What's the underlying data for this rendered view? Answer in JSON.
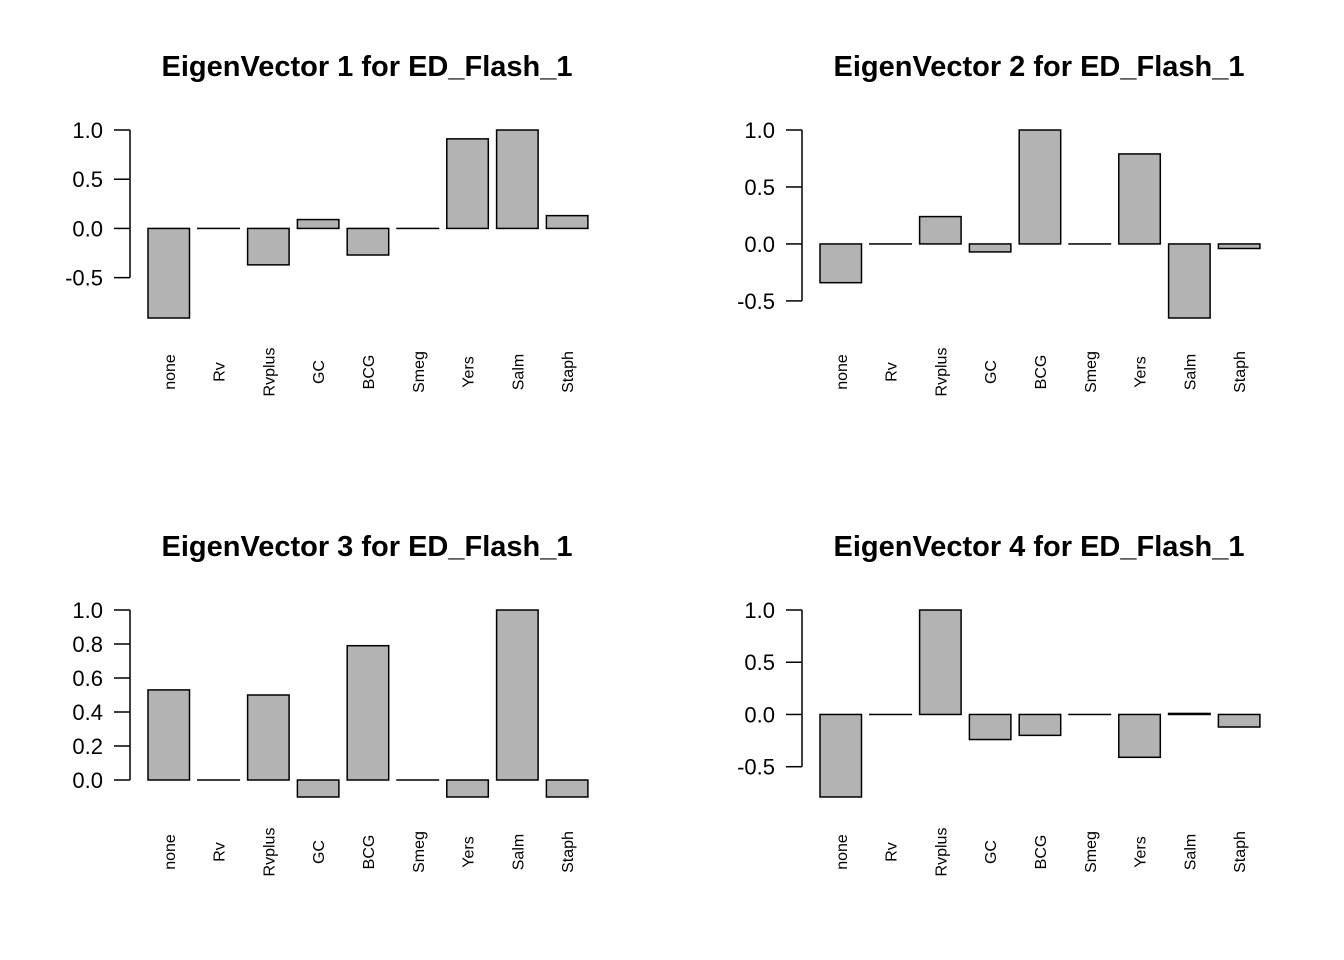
{
  "bar_color": "#b3b3b3",
  "chart_data": [
    {
      "type": "bar",
      "title": "EigenVector 1 for ED_Flash_1",
      "categories": [
        "none",
        "Rv",
        "Rvplus",
        "GC",
        "BCG",
        "Smeg",
        "Yers",
        "Salm",
        "Staph"
      ],
      "values": [
        -0.91,
        0.0,
        -0.37,
        0.09,
        -0.27,
        0.0,
        0.91,
        1.0,
        0.13
      ],
      "yticks": [
        -0.5,
        0.0,
        0.5,
        1.0
      ],
      "ytick_labels": [
        "-0.5",
        "0.0",
        "0.5",
        "1.0"
      ],
      "ylim": [
        -0.91,
        1.0
      ],
      "xlabel": "",
      "ylabel": ""
    },
    {
      "type": "bar",
      "title": "EigenVector 2 for ED_Flash_1",
      "categories": [
        "none",
        "Rv",
        "Rvplus",
        "GC",
        "BCG",
        "Smeg",
        "Yers",
        "Salm",
        "Staph"
      ],
      "values": [
        -0.34,
        0.0,
        0.24,
        -0.07,
        1.0,
        0.0,
        0.79,
        -0.65,
        -0.04
      ],
      "yticks": [
        -0.5,
        0.0,
        0.5,
        1.0
      ],
      "ytick_labels": [
        "-0.5",
        "0.0",
        "0.5",
        "1.0"
      ],
      "ylim": [
        -0.65,
        1.0
      ],
      "xlabel": "",
      "ylabel": ""
    },
    {
      "type": "bar",
      "title": "EigenVector 3 for ED_Flash_1",
      "categories": [
        "none",
        "Rv",
        "Rvplus",
        "GC",
        "BCG",
        "Smeg",
        "Yers",
        "Salm",
        "Staph"
      ],
      "values": [
        0.53,
        0.0,
        0.5,
        -0.1,
        0.79,
        0.0,
        -0.1,
        1.0,
        -0.1
      ],
      "yticks": [
        0.0,
        0.2,
        0.4,
        0.6,
        0.8,
        1.0
      ],
      "ytick_labels": [
        "0.0",
        "0.2",
        "0.4",
        "0.6",
        "0.8",
        "1.0"
      ],
      "ylim": [
        -0.1,
        1.0
      ],
      "xlabel": "",
      "ylabel": ""
    },
    {
      "type": "bar",
      "title": "EigenVector 4 for ED_Flash_1",
      "categories": [
        "none",
        "Rv",
        "Rvplus",
        "GC",
        "BCG",
        "Smeg",
        "Yers",
        "Salm",
        "Staph"
      ],
      "values": [
        -0.79,
        0.0,
        1.0,
        -0.24,
        -0.2,
        0.0,
        -0.41,
        0.01,
        -0.12
      ],
      "yticks": [
        -0.5,
        0.0,
        0.5,
        1.0
      ],
      "ytick_labels": [
        "-0.5",
        "0.0",
        "0.5",
        "1.0"
      ],
      "ylim": [
        -0.79,
        1.0
      ],
      "xlabel": "",
      "ylabel": ""
    }
  ]
}
